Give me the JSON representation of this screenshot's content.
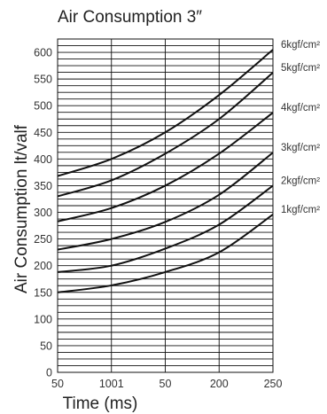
{
  "chart_data": {
    "type": "line",
    "title": "Air Consumption 3″",
    "xlabel": "Time (ms)",
    "ylabel": "Air Consumption lt/valf",
    "x_tick_labels": [
      "50",
      "1001",
      "50",
      "200",
      "250"
    ],
    "y_ticks": [
      0,
      50,
      100,
      150,
      200,
      250,
      300,
      350,
      400,
      450,
      500,
      550,
      600
    ],
    "ylim": [
      0,
      625
    ],
    "grid": true,
    "series": [
      {
        "name": "6kgf/cm²",
        "x": [
          0,
          1,
          2,
          3,
          4
        ],
        "values": [
          368,
          400,
          450,
          520,
          605
        ]
      },
      {
        "name": "5kgf/cm²",
        "x": [
          0,
          1,
          2,
          3,
          4
        ],
        "values": [
          330,
          360,
          410,
          475,
          562
        ]
      },
      {
        "name": "4kgf/cm²",
        "x": [
          0,
          1,
          2,
          3,
          4
        ],
        "values": [
          283,
          308,
          350,
          410,
          487
        ]
      },
      {
        "name": "3kgf/cm²",
        "x": [
          0,
          1,
          2,
          3,
          4
        ],
        "values": [
          230,
          250,
          282,
          333,
          412
        ]
      },
      {
        "name": "2kgf/cm²",
        "x": [
          0,
          1,
          2,
          3,
          4
        ],
        "values": [
          188,
          200,
          232,
          277,
          350
        ]
      },
      {
        "name": "1kgf/cm²",
        "x": [
          0,
          1,
          2,
          3,
          4
        ],
        "values": [
          150,
          163,
          188,
          225,
          296
        ]
      }
    ]
  }
}
